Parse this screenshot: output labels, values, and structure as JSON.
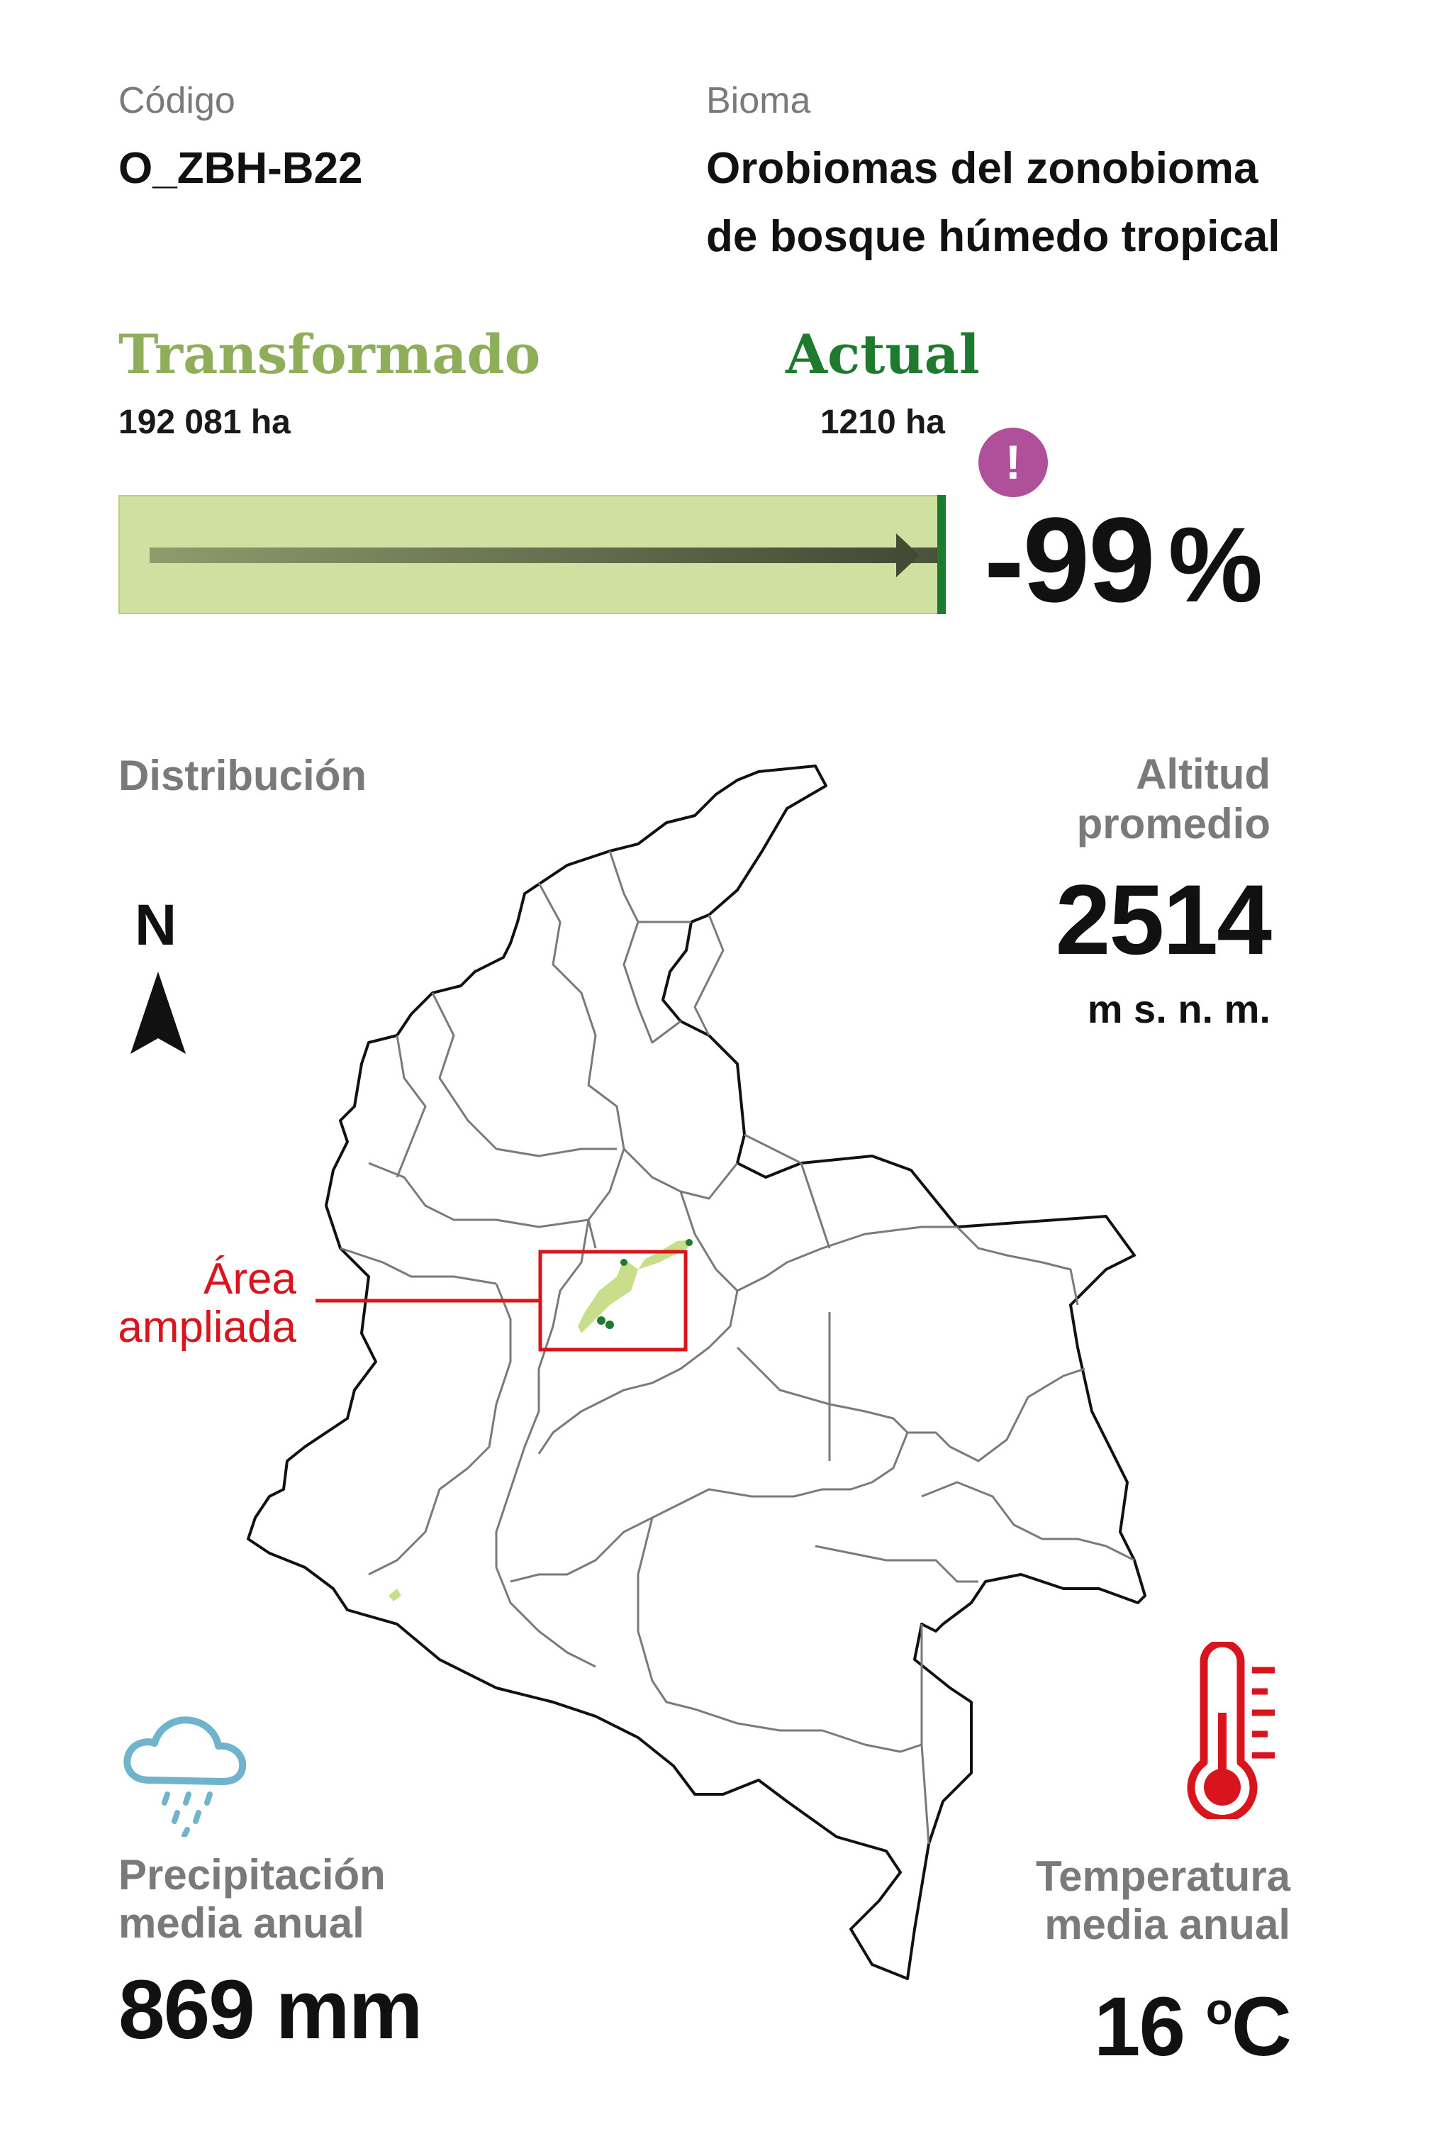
{
  "header": {
    "codigo_label": "Código",
    "codigo_value": "O_ZBH-B22",
    "bioma_label": "Bioma",
    "bioma_line1": "Orobiomas del zonobioma",
    "bioma_line2": "de bosque húmedo tropical"
  },
  "change": {
    "transformado_label": "Transformado",
    "transformado_value": "192 081 ha",
    "actual_label": "Actual",
    "actual_value": "1210 ha",
    "alert_icon": "exclamation-icon",
    "percent_value": "-99",
    "percent_unit": "%",
    "actual_fraction": 0.0063
  },
  "map": {
    "section_label": "Distribución",
    "north_label": "N",
    "callout_line1": "Área",
    "callout_line2": "ampliada"
  },
  "altitud": {
    "label_line1": "Altitud",
    "label_line2": "promedio",
    "value": "2514",
    "unit": "m s. n. m."
  },
  "precipitacion": {
    "icon": "rain-cloud-icon",
    "label_line1": "Precipitación",
    "label_line2": "media anual",
    "value": "869 mm"
  },
  "temperatura": {
    "icon": "thermometer-icon",
    "label_line1": "Temperatura",
    "label_line2": "media anual",
    "value": "16",
    "unit_sup": "o",
    "unit": "C"
  },
  "colors": {
    "transformado": "#8fae5a",
    "actual": "#1e7a2e",
    "bar_fill": "#cfe0a0",
    "alert": "#b0509a",
    "callout": "#d8141c",
    "rain": "#6fb3cc",
    "thermo": "#d8141c"
  }
}
